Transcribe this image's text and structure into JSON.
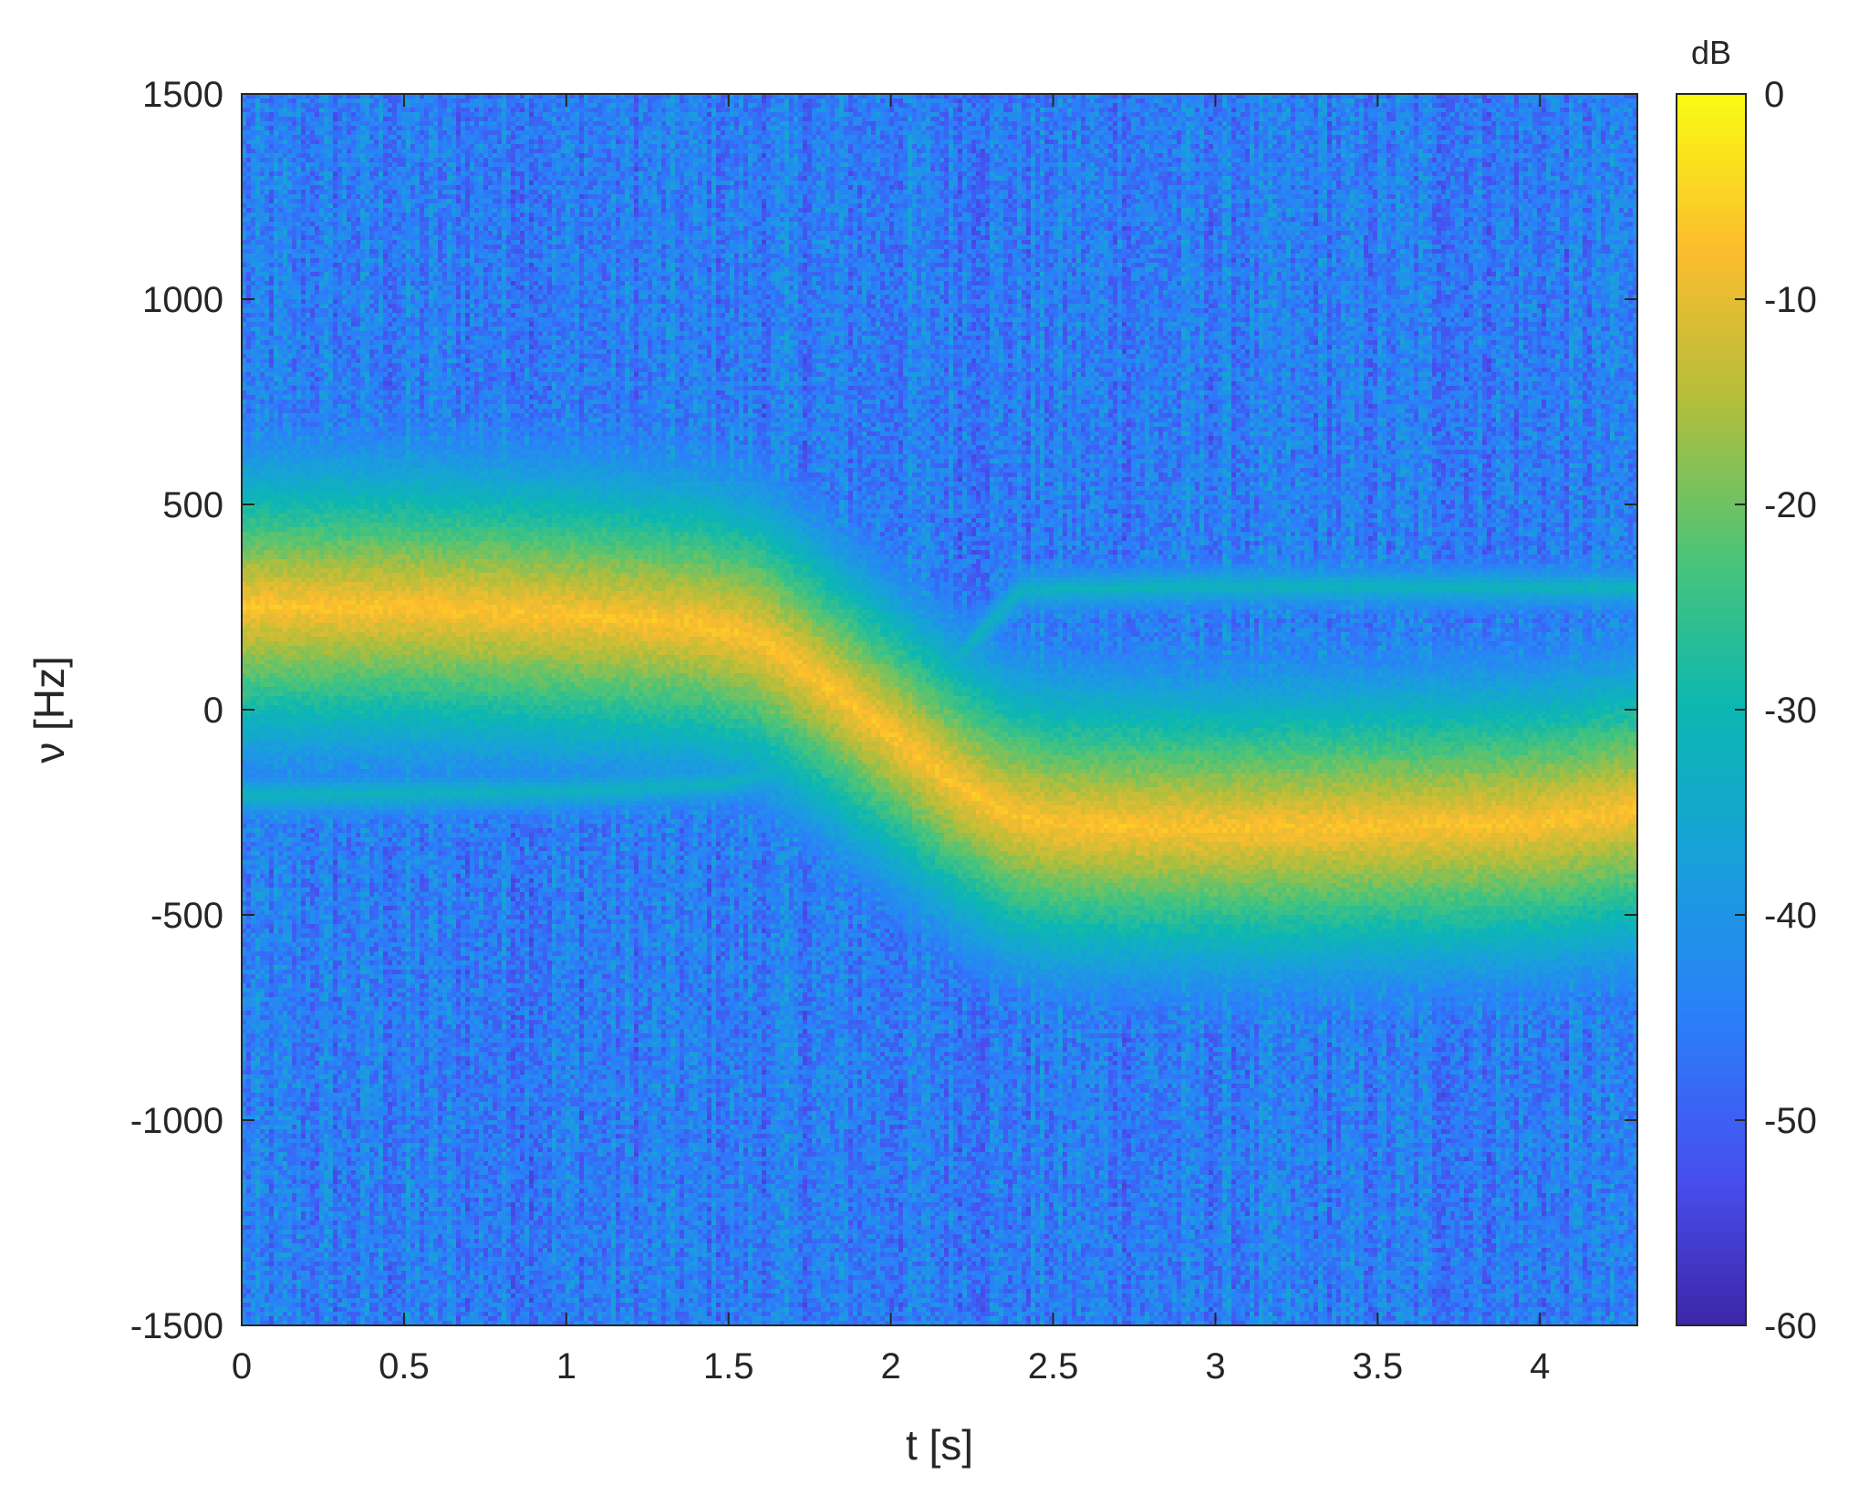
{
  "chart_data": {
    "type": "heatmap",
    "title": "",
    "xlabel": "t [s]",
    "ylabel": "ν [Hz]",
    "xlim": [
      0,
      4.3
    ],
    "ylim": [
      -1500,
      1500
    ],
    "x_ticks": [
      0,
      0.5,
      1,
      1.5,
      2,
      2.5,
      3,
      3.5,
      4
    ],
    "x_tick_labels": [
      "0",
      "0.5",
      "1",
      "1.5",
      "2",
      "2.5",
      "3",
      "3.5",
      "4"
    ],
    "y_ticks": [
      1500,
      1000,
      500,
      0,
      -500,
      -1000,
      -1500
    ],
    "y_tick_labels": [
      "1500",
      "1000",
      "500",
      "0",
      "-500",
      "-1000",
      "-1500"
    ],
    "colorbar": {
      "title": "dB",
      "range": [
        -60,
        0
      ],
      "ticks": [
        0,
        -10,
        -20,
        -30,
        -40,
        -50,
        -60
      ],
      "tick_labels": [
        "0",
        "-10",
        "-20",
        "-30",
        "-40",
        "-50",
        "-60"
      ],
      "colormap": "parula"
    },
    "main_trace": {
      "t": [
        0,
        0.5,
        1.0,
        1.4,
        1.6,
        1.8,
        2.0,
        2.2,
        2.35,
        2.5,
        3.0,
        3.5,
        4.0,
        4.3
      ],
      "nu": [
        250,
        250,
        230,
        210,
        170,
        60,
        -60,
        -180,
        -250,
        -280,
        -290,
        -285,
        -275,
        -245
      ],
      "level_db": -5
    },
    "secondary_traces": [
      {
        "t": [
          0,
          1.0,
          1.5,
          1.8,
          2.0,
          2.2,
          2.4,
          3.0,
          4.3
        ],
        "nu": [
          -210,
          -200,
          -180,
          -120,
          -10,
          120,
          290,
          300,
          295
        ],
        "level_db": -30
      }
    ],
    "background_level_db": -45
  }
}
